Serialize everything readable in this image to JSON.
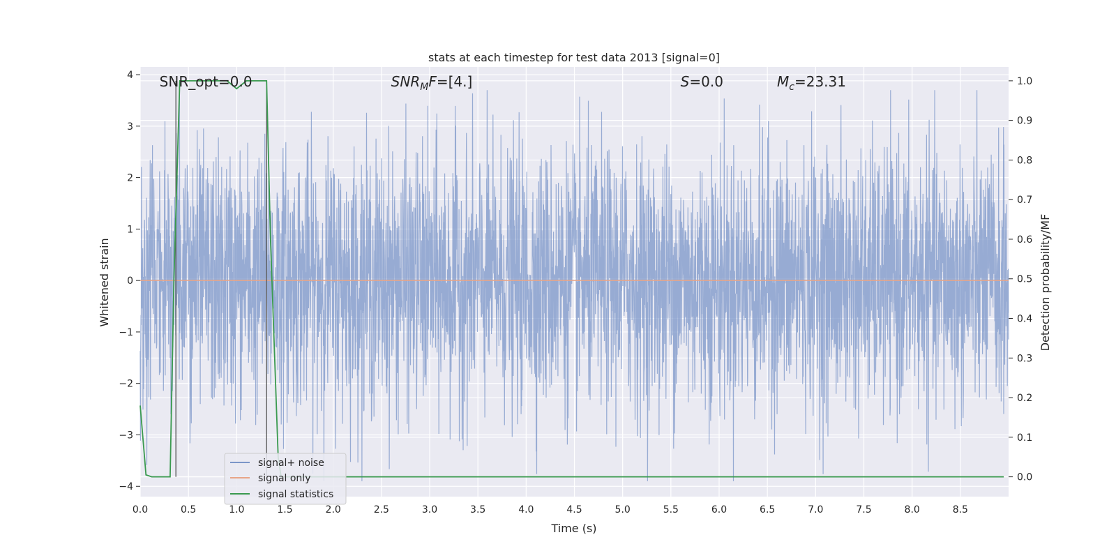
{
  "chart_data": {
    "type": "line",
    "title": "stats at each timestep for test data 2013 [signal=0]",
    "xlabel": "Time (s)",
    "ylabel_left": "Whitened strain",
    "ylabel_right": "Detection probability/MF",
    "xlim": [
      0.0,
      9.0
    ],
    "ylim_left": [
      -4.2,
      4.15
    ],
    "ylim_right": [
      -0.05,
      1.035
    ],
    "x_ticks": [
      "0.0",
      "0.5",
      "1.0",
      "1.5",
      "2.0",
      "2.5",
      "3.0",
      "3.5",
      "4.0",
      "4.5",
      "5.0",
      "5.5",
      "6.0",
      "6.5",
      "7.0",
      "7.5",
      "8.0",
      "8.5"
    ],
    "y_ticks_left": [
      "−4",
      "−3",
      "−2",
      "−1",
      "0",
      "1",
      "2",
      "3",
      "4"
    ],
    "y_ticks_right": [
      "0.0",
      "0.1",
      "0.2",
      "0.3",
      "0.4",
      "0.5",
      "0.6",
      "0.7",
      "0.8",
      "0.9",
      "1.0"
    ],
    "grid": true,
    "annotations": [
      {
        "text": "SNR_opt=0.0",
        "x": 0.2
      },
      {
        "text": "SNR_MF=[4.]",
        "x": 2.6
      },
      {
        "text": "S=0.0",
        "x": 5.6
      },
      {
        "text": "M_c=23.31",
        "x": 6.6
      }
    ],
    "vertical_markers": [
      0.37,
      1.31
    ],
    "legend_position": "lower-left",
    "series": [
      {
        "name": "signal+ noise",
        "axis": "left",
        "color": "#7b96c8",
        "description_values": "whitened noise, amplitude roughly within -3.9..3.7",
        "envelope_max": 3.7,
        "envelope_min": -3.9
      },
      {
        "name": "signal only",
        "axis": "left",
        "color": "#e8a587",
        "x": [
          0.0,
          9.0
        ],
        "y": [
          0.0,
          0.0
        ]
      },
      {
        "name": "signal statistics",
        "axis": "right",
        "color": "#3a9a4f",
        "x": [
          0.0,
          0.06,
          0.12,
          0.31,
          0.35,
          0.41,
          0.44,
          0.5,
          0.9,
          0.95,
          1.0,
          1.05,
          1.1,
          1.31,
          1.35,
          1.43,
          1.46,
          1.5,
          2.0,
          3.0,
          4.0,
          5.0,
          6.0,
          7.0,
          8.0,
          8.95
        ],
        "y": [
          0.18,
          0.005,
          0.0,
          0.0,
          0.5,
          1.0,
          1.0,
          1.0,
          1.0,
          0.99,
          0.98,
          0.99,
          1.0,
          1.0,
          0.6,
          0.05,
          0.0,
          0.0,
          0.0,
          0.0,
          0.0,
          0.0,
          0.0,
          0.0,
          0.0,
          0.0
        ]
      }
    ]
  }
}
